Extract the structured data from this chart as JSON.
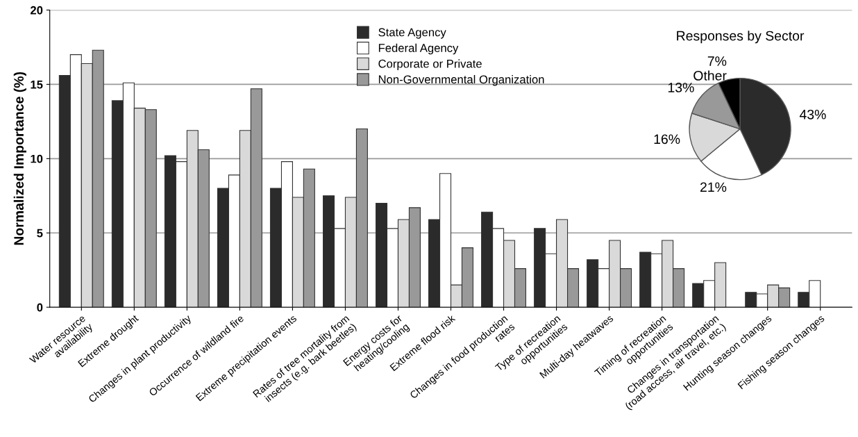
{
  "chart_data": [
    {
      "type": "bar",
      "ylabel": "Normalized Importance (%)",
      "categories": [
        "Water resource\navailability",
        "Extreme drought",
        "Changes in plant productivity",
        "Occurrence of wildland fire",
        "Extreme precipitation events",
        "Rates of tree mortality from\ninsects (e.g. bark beetles)",
        "Energy costs for\nheating/cooling",
        "Extreme flood risk",
        "Changes in food production\nrates",
        "Type of recreation\nopportunities",
        "Multi-day heatwaves",
        "Timing of recreation\nopportunities",
        "Changes in transportation\n(road access, air travel, etc.)",
        "Hunting season changes",
        "Fishing season changes"
      ],
      "series": [
        {
          "name": "State Agency",
          "color": "#2b2b2b",
          "values": [
            15.6,
            13.9,
            10.2,
            8.0,
            8.0,
            7.5,
            7.0,
            5.9,
            6.4,
            5.3,
            3.2,
            3.7,
            1.6,
            1.0,
            1.0
          ]
        },
        {
          "name": "Federal Agency",
          "color": "#ffffff",
          "values": [
            17.0,
            15.1,
            9.8,
            8.9,
            9.8,
            5.3,
            5.3,
            9.0,
            5.3,
            3.6,
            2.6,
            3.6,
            1.8,
            0.9,
            1.8
          ]
        },
        {
          "name": "Corporate or Private",
          "color": "#d9d9d9",
          "values": [
            16.4,
            13.4,
            11.9,
            11.9,
            7.4,
            7.4,
            5.9,
            1.5,
            4.5,
            5.9,
            4.5,
            4.5,
            3.0,
            1.5,
            null
          ]
        },
        {
          "name": "Non-Governmental Organization",
          "color": "#999999",
          "values": [
            17.3,
            13.3,
            10.6,
            14.7,
            9.3,
            12.0,
            6.7,
            4.0,
            2.6,
            2.6,
            2.6,
            2.6,
            null,
            1.3,
            null
          ]
        }
      ],
      "ylim": [
        0,
        20
      ],
      "yticks": [
        0,
        5,
        10,
        15,
        20
      ],
      "grid": "y",
      "legend": "top"
    },
    {
      "type": "pie",
      "title": "Responses by Sector",
      "categories": [
        null,
        null,
        null,
        null,
        "Other"
      ],
      "values": [
        43,
        21,
        16,
        13,
        7
      ],
      "colors": [
        "#2b2b2b",
        "#ffffff",
        "#d9d9d9",
        "#999999",
        "#000000"
      ],
      "value_labels": [
        "43%",
        "21%",
        "16%",
        "13%",
        "7%"
      ]
    }
  ]
}
